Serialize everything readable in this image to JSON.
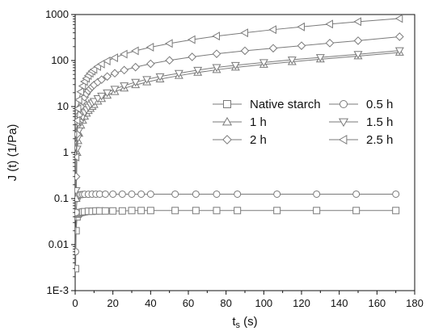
{
  "chart_data": {
    "type": "line",
    "xlabel": "t",
    "xlabel_sub": "s",
    "xlabel_unit": " (s)",
    "ylabel": "J (t) (1/Pa)",
    "xlim": [
      0,
      180
    ],
    "ylim": [
      0.001,
      1000
    ],
    "y_scale": "log",
    "grid": false,
    "legend_position": "center-right",
    "x_ticks": [
      "0",
      "20",
      "40",
      "60",
      "80",
      "100",
      "120",
      "140",
      "160",
      "180"
    ],
    "y_ticks": [
      "1E-3",
      "0.01",
      "0.1",
      "1",
      "10",
      "100",
      "1000"
    ],
    "line_color": "#7a7a7a",
    "series": [
      {
        "name": "Native starch",
        "marker": "square",
        "x": [
          0.2,
          0.5,
          1,
          1.5,
          2,
          3,
          4,
          5,
          7,
          9,
          11,
          13,
          16,
          20,
          25,
          30,
          35,
          40,
          53,
          64,
          75,
          86,
          107,
          128,
          149,
          170
        ],
        "y": [
          0.003,
          0.02,
          0.04,
          0.046,
          0.048,
          0.05,
          0.051,
          0.052,
          0.053,
          0.053,
          0.054,
          0.054,
          0.054,
          0.054,
          0.054,
          0.055,
          0.055,
          0.055,
          0.055,
          0.055,
          0.055,
          0.055,
          0.055,
          0.055,
          0.055,
          0.055
        ]
      },
      {
        "name": "0.5 h",
        "marker": "circle",
        "x": [
          0.2,
          0.5,
          1,
          1.5,
          2,
          3,
          4,
          5,
          7,
          9,
          11,
          13,
          16,
          20,
          25,
          30,
          35,
          40,
          53,
          64,
          75,
          86,
          107,
          128,
          149,
          170
        ],
        "y": [
          0.007,
          0.05,
          0.1,
          0.115,
          0.12,
          0.122,
          0.123,
          0.124,
          0.124,
          0.125,
          0.125,
          0.125,
          0.125,
          0.125,
          0.125,
          0.125,
          0.125,
          0.125,
          0.125,
          0.125,
          0.125,
          0.125,
          0.125,
          0.125,
          0.125,
          0.125
        ]
      },
      {
        "name": "1 h",
        "marker": "triangle-up",
        "x": [
          0.5,
          1,
          1.5,
          2,
          3,
          4,
          5,
          6,
          7,
          8,
          9,
          10,
          12,
          14,
          17,
          21,
          26,
          32,
          38,
          45,
          55,
          65,
          75,
          85,
          100,
          115,
          130,
          150,
          172
        ],
        "y": [
          0.1,
          1,
          1.8,
          2.6,
          3.9,
          5,
          6.1,
          7.1,
          8.1,
          9,
          10,
          11,
          13,
          14.8,
          17.5,
          21,
          25,
          29.5,
          34,
          39.5,
          47,
          55,
          63,
          71,
          82,
          94,
          107,
          125,
          150
        ]
      },
      {
        "name": "1.5 h",
        "marker": "triangle-down",
        "x": [
          0.5,
          1,
          1.5,
          2,
          3,
          4,
          5,
          6,
          7,
          8,
          9,
          10,
          12,
          14,
          17,
          21,
          26,
          32,
          38,
          45,
          55,
          65,
          75,
          85,
          100,
          115,
          130,
          150,
          172
        ],
        "y": [
          0.15,
          1.2,
          2.1,
          3,
          4.6,
          6,
          7.4,
          8.6,
          9.8,
          11,
          12,
          13,
          15,
          17,
          20,
          24,
          28.5,
          34,
          39,
          45,
          53,
          62,
          71,
          79,
          91,
          104,
          117,
          137,
          165
        ]
      },
      {
        "name": "2 h",
        "marker": "diamond",
        "x": [
          0.5,
          1,
          1.5,
          2,
          3,
          4,
          5,
          6,
          7,
          8,
          9,
          10,
          12,
          14,
          17,
          21,
          26,
          32,
          40,
          50,
          62,
          75,
          90,
          105,
          120,
          135,
          150,
          172
        ],
        "y": [
          0.3,
          2.5,
          4.5,
          6.5,
          10,
          13,
          16,
          19,
          22,
          24.5,
          27,
          29.5,
          34,
          38.5,
          45,
          53,
          62,
          72,
          85,
          101,
          120,
          140,
          163,
          185,
          210,
          240,
          270,
          330
        ]
      },
      {
        "name": "2.5 h",
        "marker": "triangle-left",
        "x": [
          0.5,
          1,
          1.5,
          2,
          3,
          4,
          5,
          6,
          7,
          8,
          9,
          10,
          12,
          14,
          17,
          21,
          26,
          32,
          40,
          50,
          62,
          75,
          90,
          105,
          120,
          135,
          150,
          172
        ],
        "y": [
          0.8,
          5,
          9,
          14,
          21,
          28,
          35,
          41,
          47,
          53,
          59,
          64,
          74,
          84,
          98,
          115,
          138,
          163,
          195,
          235,
          285,
          340,
          400,
          470,
          540,
          620,
          700,
          820
        ]
      }
    ]
  }
}
